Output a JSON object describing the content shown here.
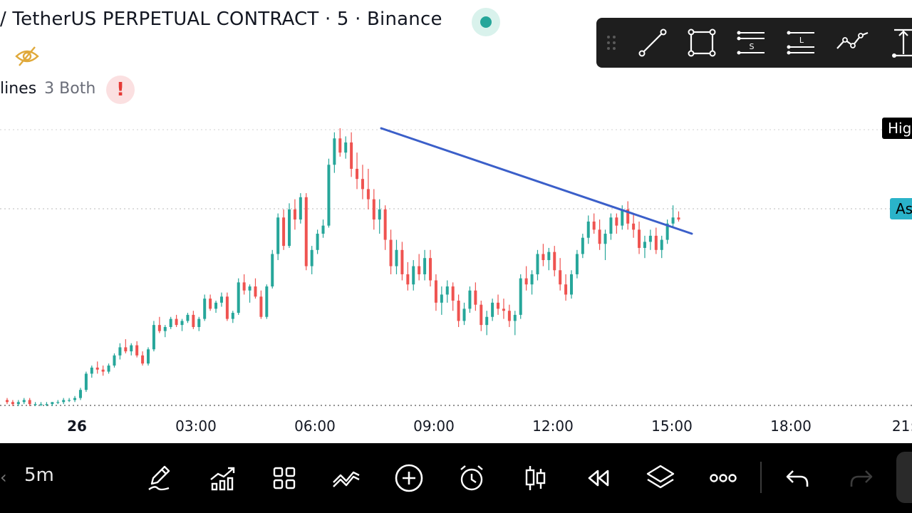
{
  "header": {
    "title": "/ TetherUS PERPETUAL CONTRACT · 5 · Binance",
    "indicator_name": "lines",
    "indicator_params": "3 Both",
    "warning_glyph": "!"
  },
  "icons": {
    "status": "market-open-dot",
    "visibility": "eye-slash-icon",
    "warning": "warning-icon"
  },
  "colors": {
    "up": "#26a69a",
    "down": "#ef5350",
    "trendline": "#3b5fc9",
    "ask_tag": "#2ab3c9",
    "high_tag": "#000000",
    "toolbar_bg": "#1e1e1e",
    "bottom_bar_bg": "#000000"
  },
  "drawing_toolbar": {
    "tools": [
      "drag-handle-icon",
      "trend-line-icon",
      "rectangle-icon",
      "support-lines-icon",
      "label-lines-icon",
      "path-icon",
      "measure-icon"
    ],
    "labels": {
      "support": "S",
      "label": "L"
    }
  },
  "price_tags": {
    "high": "High",
    "ask": "Ask"
  },
  "chart_data": {
    "type": "candlestick",
    "x_ticks": [
      "26",
      "03:00",
      "06:00",
      "09:00",
      "12:00",
      "15:00",
      "18:00",
      "21:"
    ],
    "bar_interval": "5m",
    "trendline": {
      "start_time": "07:45",
      "end_time": "15:35"
    },
    "candles_normalized_note": "",
    "candles": [
      [
        56,
        57,
        54,
        55
      ],
      [
        55,
        56,
        53,
        54
      ],
      [
        54,
        56,
        53,
        55
      ],
      [
        55,
        57,
        54,
        56
      ],
      [
        56,
        57,
        53,
        54
      ],
      [
        54,
        55,
        53,
        54
      ],
      [
        54,
        55,
        53,
        54
      ],
      [
        54,
        55,
        53,
        54
      ],
      [
        54,
        55,
        53,
        55
      ],
      [
        55,
        56,
        54,
        55
      ],
      [
        55,
        57,
        54,
        56
      ],
      [
        56,
        57,
        55,
        56
      ],
      [
        56,
        58,
        55,
        57
      ],
      [
        57,
        62,
        56,
        61
      ],
      [
        61,
        70,
        60,
        69
      ],
      [
        69,
        73,
        67,
        72
      ],
      [
        72,
        75,
        69,
        71
      ],
      [
        71,
        73,
        68,
        70
      ],
      [
        70,
        74,
        69,
        73
      ],
      [
        73,
        79,
        72,
        78
      ],
      [
        78,
        84,
        76,
        82
      ],
      [
        82,
        86,
        79,
        80
      ],
      [
        80,
        84,
        78,
        83
      ],
      [
        83,
        85,
        77,
        78
      ],
      [
        78,
        80,
        73,
        74
      ],
      [
        74,
        82,
        73,
        81
      ],
      [
        81,
        95,
        80,
        93
      ],
      [
        93,
        97,
        89,
        90
      ],
      [
        90,
        93,
        87,
        92
      ],
      [
        92,
        97,
        91,
        96
      ],
      [
        96,
        98,
        92,
        93
      ],
      [
        93,
        96,
        90,
        95
      ],
      [
        95,
        99,
        94,
        98
      ],
      [
        98,
        100,
        91,
        92
      ],
      [
        92,
        97,
        90,
        96
      ],
      [
        96,
        108,
        95,
        106
      ],
      [
        106,
        108,
        100,
        101
      ],
      [
        101,
        105,
        99,
        104
      ],
      [
        104,
        109,
        102,
        107
      ],
      [
        107,
        109,
        95,
        96
      ],
      [
        96,
        100,
        94,
        99
      ],
      [
        99,
        116,
        98,
        114
      ],
      [
        114,
        118,
        108,
        110
      ],
      [
        110,
        113,
        104,
        112
      ],
      [
        112,
        116,
        106,
        107
      ],
      [
        107,
        110,
        96,
        97
      ],
      [
        97,
        113,
        96,
        112
      ],
      [
        112,
        130,
        111,
        128
      ],
      [
        128,
        148,
        125,
        146
      ],
      [
        146,
        150,
        130,
        132
      ],
      [
        132,
        153,
        131,
        150
      ],
      [
        150,
        155,
        140,
        145
      ],
      [
        145,
        158,
        143,
        156
      ],
      [
        156,
        158,
        120,
        122
      ],
      [
        122,
        132,
        118,
        130
      ],
      [
        130,
        140,
        128,
        138
      ],
      [
        138,
        145,
        136,
        142
      ],
      [
        142,
        175,
        141,
        172
      ],
      [
        172,
        188,
        168,
        185
      ],
      [
        185,
        190,
        176,
        178
      ],
      [
        178,
        186,
        175,
        183
      ],
      [
        183,
        188,
        166,
        170
      ],
      [
        170,
        178,
        160,
        165
      ],
      [
        165,
        172,
        155,
        160
      ],
      [
        160,
        170,
        150,
        155
      ],
      [
        155,
        160,
        140,
        145
      ],
      [
        145,
        155,
        138,
        150
      ],
      [
        150,
        152,
        130,
        135
      ],
      [
        135,
        140,
        118,
        122
      ],
      [
        122,
        135,
        118,
        130
      ],
      [
        130,
        134,
        115,
        118
      ],
      [
        118,
        124,
        110,
        113
      ],
      [
        113,
        125,
        110,
        122
      ],
      [
        122,
        128,
        115,
        118
      ],
      [
        118,
        130,
        115,
        126
      ],
      [
        126,
        130,
        112,
        115
      ],
      [
        115,
        118,
        100,
        104
      ],
      [
        104,
        112,
        98,
        108
      ],
      [
        108,
        115,
        104,
        112
      ],
      [
        112,
        114,
        100,
        105
      ],
      [
        105,
        108,
        92,
        95
      ],
      [
        95,
        104,
        93,
        101
      ],
      [
        101,
        112,
        99,
        110
      ],
      [
        110,
        114,
        100,
        103
      ],
      [
        103,
        105,
        90,
        93
      ],
      [
        93,
        100,
        88,
        97
      ],
      [
        97,
        106,
        95,
        104
      ],
      [
        104,
        108,
        98,
        101
      ],
      [
        101,
        106,
        96,
        100
      ],
      [
        100,
        103,
        92,
        95
      ],
      [
        95,
        100,
        88,
        98
      ],
      [
        98,
        118,
        96,
        116
      ],
      [
        116,
        122,
        110,
        113
      ],
      [
        113,
        120,
        108,
        118
      ],
      [
        118,
        130,
        115,
        128
      ],
      [
        128,
        133,
        122,
        125
      ],
      [
        125,
        131,
        120,
        129
      ],
      [
        129,
        132,
        117,
        120
      ],
      [
        120,
        126,
        110,
        113
      ],
      [
        113,
        118,
        105,
        108
      ],
      [
        108,
        120,
        106,
        118
      ],
      [
        118,
        130,
        116,
        128
      ],
      [
        128,
        138,
        126,
        136
      ],
      [
        136,
        147,
        133,
        144
      ],
      [
        144,
        148,
        138,
        140
      ],
      [
        140,
        145,
        130,
        133
      ],
      [
        133,
        140,
        125,
        138
      ],
      [
        138,
        148,
        135,
        146
      ],
      [
        146,
        148,
        138,
        142
      ],
      [
        142,
        152,
        140,
        150
      ],
      [
        150,
        154,
        140,
        143
      ],
      [
        143,
        148,
        136,
        140
      ],
      [
        140,
        144,
        128,
        131
      ],
      [
        131,
        137,
        126,
        134
      ],
      [
        134,
        140,
        130,
        137
      ],
      [
        137,
        141,
        128,
        130
      ],
      [
        130,
        137,
        126,
        135
      ],
      [
        135,
        145,
        133,
        143
      ],
      [
        143,
        152,
        141,
        146
      ],
      [
        146,
        149,
        144,
        145
      ]
    ]
  },
  "bottom_bar": {
    "interval_label": "5m",
    "buttons": [
      "draw-pen-icon",
      "indicators-icon",
      "layout-grid-icon",
      "fib-icon",
      "add-circle-icon",
      "alarm-clock-icon",
      "candle-type-icon",
      "replay-icon",
      "layers-icon",
      "more-icon",
      "undo-icon",
      "redo-icon"
    ]
  }
}
